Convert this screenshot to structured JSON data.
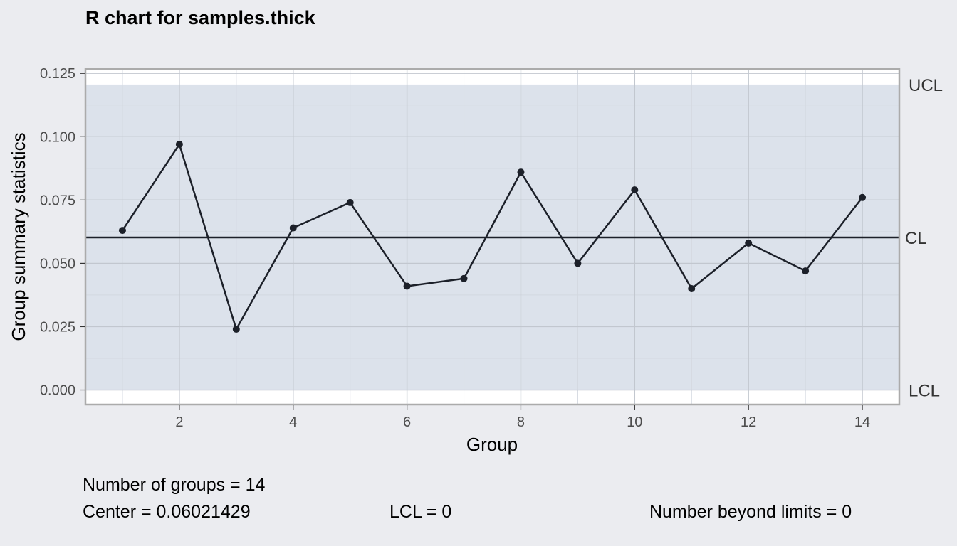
{
  "chart_data": {
    "type": "line",
    "title": "R chart for samples.thick",
    "xlabel": "Group",
    "ylabel": "Group summary statistics",
    "x": [
      1,
      2,
      3,
      4,
      5,
      6,
      7,
      8,
      9,
      10,
      11,
      12,
      13,
      14
    ],
    "values": [
      0.063,
      0.097,
      0.024,
      0.064,
      0.074,
      0.041,
      0.044,
      0.086,
      0.05,
      0.079,
      0.04,
      0.058,
      0.047,
      0.076
    ],
    "xlim": [
      0.35,
      14.65
    ],
    "ylim": [
      -0.00575,
      0.12675
    ],
    "x_ticks": [
      2,
      4,
      6,
      8,
      10,
      12,
      14
    ],
    "y_ticks": [
      0,
      0.025,
      0.05,
      0.075,
      0.1,
      0.125
    ],
    "y_tick_labels": [
      "0.000",
      "0.025",
      "0.050",
      "0.075",
      "0.100",
      "0.125"
    ],
    "center": 0.06021429,
    "ucl": 0.1206,
    "lcl": 0,
    "limit_labels": {
      "ucl": "UCL",
      "cl": "CL",
      "lcl": "LCL"
    },
    "grid": true,
    "colors": {
      "background": "#EBECF0",
      "panel": "#FFFFFF",
      "control_band": "#DCE2EB",
      "grid_major": "#C2C7CF",
      "grid_minor": "#D3D8E0",
      "line": "#1C2029",
      "border": "#ABABAB"
    }
  },
  "stats": {
    "groups": "Number of groups = 14",
    "center": "Center = 0.06021429",
    "lcl": "LCL = 0",
    "beyond": "Number beyond limits = 0"
  }
}
